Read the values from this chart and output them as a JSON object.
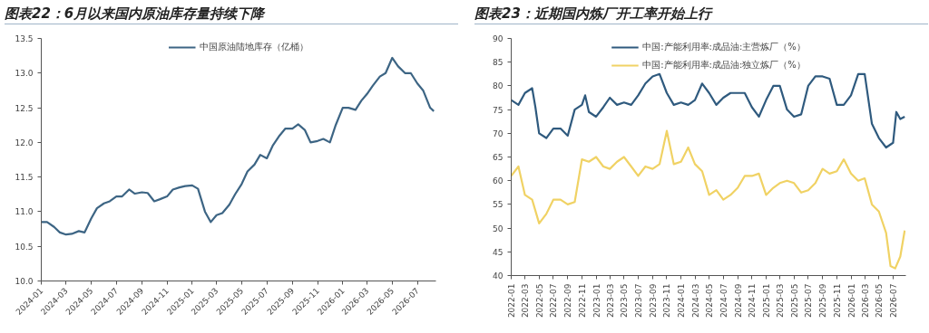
{
  "chart_data": [
    {
      "type": "line",
      "title": "图表22：6月以来国内原油库存量持续下降",
      "legend": "top",
      "grid": false,
      "xlim": [
        "2024-01-01",
        "2026-08-15"
      ],
      "xticks": [
        "2024-01",
        "2024-03",
        "2024-05",
        "2024-07",
        "2024-09",
        "2024-11",
        "2025-01",
        "2025-03",
        "2025-05",
        "2025-07",
        "2025-09",
        "2025-11",
        "2026-01",
        "2026-03",
        "2026-05",
        "2026-07"
      ],
      "ylim": [
        10,
        13.5
      ],
      "yticks": [
        {
          "value": 10,
          "label": "10.0"
        },
        {
          "value": 10.5,
          "label": "10.5"
        },
        {
          "value": 11,
          "label": "11.0"
        },
        {
          "value": 11.5,
          "label": "11.5"
        },
        {
          "value": 12,
          "label": "12.0"
        },
        {
          "value": 12.5,
          "label": "12.5"
        },
        {
          "value": 13,
          "label": "13.0"
        },
        {
          "value": 13.5,
          "label": "13.5"
        }
      ],
      "series": [
        {
          "name": "中国原油陆地库存（亿桶）",
          "color": "#3d6584",
          "x": [
            "2024-01-01",
            "2024-01-15",
            "2024-02-01",
            "2024-02-15",
            "2024-03-01",
            "2024-03-15",
            "2024-04-01",
            "2024-04-15",
            "2024-05-01",
            "2024-05-15",
            "2024-06-01",
            "2024-06-15",
            "2024-07-01",
            "2024-07-15",
            "2024-08-01",
            "2024-08-15",
            "2024-09-01",
            "2024-09-15",
            "2024-10-01",
            "2024-10-15",
            "2024-11-01",
            "2024-11-15",
            "2024-12-01",
            "2024-12-15",
            "2025-01-01",
            "2025-01-15",
            "2025-02-01",
            "2025-02-15",
            "2025-03-01",
            "2025-03-15",
            "2025-04-01",
            "2025-04-15",
            "2025-05-01",
            "2025-05-15",
            "2025-06-01",
            "2025-06-15",
            "2025-07-01",
            "2025-07-15",
            "2025-08-01",
            "2025-08-15",
            "2025-09-01",
            "2025-09-15",
            "2025-10-01",
            "2025-10-15",
            "2025-11-01",
            "2025-11-15",
            "2025-12-01",
            "2025-12-15",
            "2026-01-01",
            "2026-01-15",
            "2026-02-01",
            "2026-02-15",
            "2026-03-01",
            "2026-03-15",
            "2026-04-01",
            "2026-04-15",
            "2026-05-01",
            "2026-05-15",
            "2026-06-01",
            "2026-06-15",
            "2026-07-01",
            "2026-07-15",
            "2026-08-01",
            "2026-08-10"
          ],
          "values": [
            10.85,
            10.85,
            10.78,
            10.7,
            10.67,
            10.68,
            10.72,
            10.7,
            10.9,
            11.05,
            11.12,
            11.15,
            11.22,
            11.22,
            11.32,
            11.26,
            11.28,
            11.27,
            11.15,
            11.18,
            11.22,
            11.32,
            11.35,
            11.37,
            11.38,
            11.33,
            11.0,
            10.85,
            10.95,
            10.98,
            11.1,
            11.25,
            11.4,
            11.58,
            11.68,
            11.82,
            11.77,
            11.95,
            12.1,
            12.2,
            12.2,
            12.26,
            12.18,
            12.0,
            12.02,
            12.05,
            12.0,
            12.25,
            12.5,
            12.5,
            12.47,
            12.6,
            12.7,
            12.82,
            12.95,
            13.0,
            13.22,
            13.1,
            13.0,
            13.0,
            12.85,
            12.75,
            12.5,
            12.45
          ]
        }
      ]
    },
    {
      "type": "line",
      "title": "图表23：近期国内炼厂开工率开始上行",
      "legend": "top",
      "grid": false,
      "xlim": [
        "2022-01-01",
        "2026-08-25"
      ],
      "xticks": [
        "2022-01",
        "2022-03",
        "2022-05",
        "2022-07",
        "2022-09",
        "2022-11",
        "2023-01",
        "2023-03",
        "2023-05",
        "2023-07",
        "2023-09",
        "2023-11",
        "2024-01",
        "2024-03",
        "2024-05",
        "2024-07",
        "2024-09",
        "2024-11",
        "2025-01",
        "2025-03",
        "2025-05",
        "2025-07",
        "2025-09",
        "2025-11",
        "2026-01",
        "2026-03",
        "2026-05",
        "2026-07"
      ],
      "ylim": [
        40,
        90
      ],
      "yticks": [
        40,
        45,
        50,
        55,
        60,
        65,
        70,
        75,
        80,
        85,
        90
      ],
      "series": [
        {
          "name": "中国:产能利用率:成品油:主营炼厂（%）",
          "color": "#2f5a7e",
          "x": [
            "2022-01-01",
            "2022-02-01",
            "2022-03-01",
            "2022-04-01",
            "2022-04-15",
            "2022-05-01",
            "2022-06-01",
            "2022-07-01",
            "2022-08-01",
            "2022-09-01",
            "2022-10-01",
            "2022-11-01",
            "2022-11-15",
            "2022-12-01",
            "2023-01-01",
            "2023-02-01",
            "2023-03-01",
            "2023-04-01",
            "2023-05-01",
            "2023-06-01",
            "2023-07-01",
            "2023-08-01",
            "2023-09-01",
            "2023-10-01",
            "2023-11-01",
            "2023-12-01",
            "2024-01-01",
            "2024-02-01",
            "2024-03-01",
            "2024-04-01",
            "2024-05-01",
            "2024-06-01",
            "2024-07-01",
            "2024-08-01",
            "2024-09-01",
            "2024-10-01",
            "2024-11-01",
            "2024-12-01",
            "2025-01-01",
            "2025-02-01",
            "2025-03-01",
            "2025-04-01",
            "2025-05-01",
            "2025-06-01",
            "2025-07-01",
            "2025-08-01",
            "2025-09-01",
            "2025-10-01",
            "2025-11-01",
            "2025-12-01",
            "2026-01-01",
            "2026-02-01",
            "2026-03-01",
            "2026-04-01",
            "2026-05-01",
            "2026-06-01",
            "2026-07-01",
            "2026-07-15",
            "2026-08-01",
            "2026-08-20"
          ],
          "values": [
            77,
            76,
            78.5,
            79.5,
            75.5,
            70,
            69,
            71,
            71,
            69.5,
            75,
            76,
            78,
            74.5,
            73.5,
            75.5,
            77.5,
            76,
            76.5,
            76,
            78,
            80.5,
            82,
            82.5,
            78.5,
            76,
            76.5,
            76,
            77,
            80.5,
            78.5,
            76,
            77.5,
            78.5,
            78.5,
            78.5,
            75.5,
            73.5,
            77,
            80,
            80,
            75,
            73.5,
            74,
            80,
            82,
            82,
            81.5,
            76,
            76,
            78,
            82.5,
            82.5,
            72,
            69,
            67,
            68,
            74.5,
            73,
            73.5
          ]
        },
        {
          "name": "中国:产能利用率:成品油:独立炼厂（%）",
          "color": "#f0d264",
          "x": [
            "2022-01-01",
            "2022-02-01",
            "2022-03-01",
            "2022-04-01",
            "2022-05-01",
            "2022-06-01",
            "2022-07-01",
            "2022-08-01",
            "2022-09-01",
            "2022-10-01",
            "2022-11-01",
            "2022-12-01",
            "2023-01-01",
            "2023-02-01",
            "2023-03-01",
            "2023-04-01",
            "2023-05-01",
            "2023-06-01",
            "2023-07-01",
            "2023-08-01",
            "2023-09-01",
            "2023-10-01",
            "2023-11-01",
            "2023-12-01",
            "2024-01-01",
            "2024-02-01",
            "2024-03-01",
            "2024-04-01",
            "2024-05-01",
            "2024-06-01",
            "2024-07-01",
            "2024-08-01",
            "2024-09-01",
            "2024-10-01",
            "2024-11-01",
            "2024-12-01",
            "2025-01-01",
            "2025-02-01",
            "2025-03-01",
            "2025-04-01",
            "2025-05-01",
            "2025-06-01",
            "2025-07-01",
            "2025-08-01",
            "2025-09-01",
            "2025-10-01",
            "2025-11-01",
            "2025-12-01",
            "2026-01-01",
            "2026-02-01",
            "2026-03-01",
            "2026-04-01",
            "2026-05-01",
            "2026-06-01",
            "2026-06-20",
            "2026-07-10",
            "2026-08-01",
            "2026-08-20"
          ],
          "values": [
            61,
            63,
            57,
            56,
            51,
            53,
            56,
            56,
            55,
            55.5,
            64.5,
            64,
            65,
            63,
            62.5,
            64,
            65,
            63,
            61,
            63,
            62.5,
            63.5,
            70.5,
            63.5,
            64,
            67,
            63.5,
            62,
            57,
            58,
            56,
            57,
            58.5,
            61,
            61,
            61.5,
            57,
            58.5,
            59.5,
            60,
            59.5,
            57.5,
            58,
            59.5,
            62.5,
            61.5,
            62,
            64.5,
            61.5,
            60,
            60.5,
            55,
            53.5,
            49,
            42,
            41.5,
            44,
            49.5
          ]
        }
      ]
    }
  ]
}
